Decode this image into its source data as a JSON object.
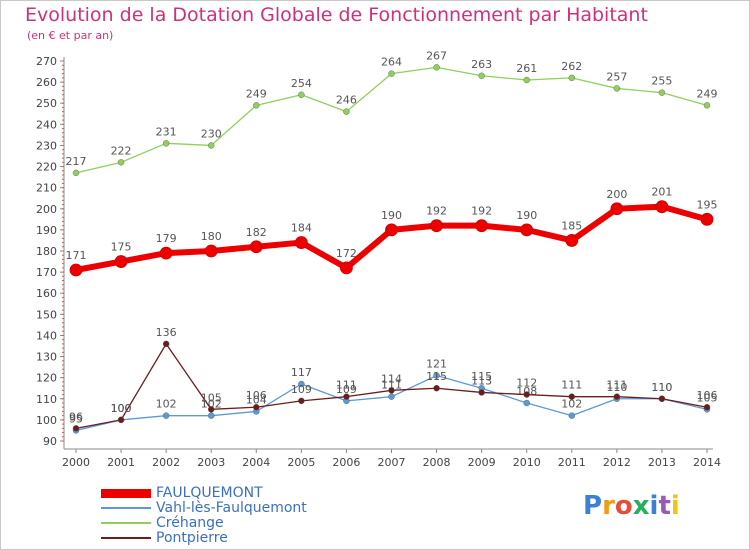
{
  "header": {
    "title": "Evolution de la Dotation Globale de Fonctionnement par Habitant",
    "subtitle": "(en € et par an)"
  },
  "logo": {
    "text": "Proxiti",
    "colors": [
      "#3a7fd8",
      "#f39c12",
      "#e74c3c",
      "#27ae60",
      "#3a7fd8",
      "#9b59b6",
      "#f1c40f"
    ]
  },
  "chart_data": {
    "type": "line",
    "title": "Evolution de la Dotation Globale de Fonctionnement par Habitant",
    "subtitle": "(en € et par an)",
    "xlabel": "",
    "ylabel": "",
    "x": [
      "2000",
      "2001",
      "2002",
      "2003",
      "2004",
      "2005",
      "2006",
      "2007",
      "2008",
      "2009",
      "2010",
      "2011",
      "2012",
      "2013",
      "2014"
    ],
    "ylim": [
      90,
      270
    ],
    "yticks": [
      90,
      100,
      110,
      120,
      130,
      140,
      150,
      160,
      170,
      180,
      190,
      200,
      210,
      220,
      230,
      240,
      250,
      260,
      270
    ],
    "grid": false,
    "legend_position": "bottom-left",
    "series": [
      {
        "name": "FAULQUEMONT",
        "color": "#ee0000",
        "values": [
          171,
          175,
          179,
          180,
          182,
          184,
          172,
          190,
          192,
          192,
          190,
          185,
          200,
          201,
          195
        ]
      },
      {
        "name": "Vahl-lès-Faulquemont",
        "color": "#5a9bd5",
        "values": [
          95,
          100,
          102,
          102,
          104,
          117,
          109,
          111,
          121,
          115,
          108,
          102,
          110,
          110,
          105
        ]
      },
      {
        "name": "Créhange",
        "color": "#8fd05a",
        "values": [
          217,
          222,
          231,
          230,
          249,
          254,
          246,
          264,
          267,
          263,
          261,
          262,
          257,
          255,
          249
        ]
      },
      {
        "name": "Pontpierre",
        "color": "#6b1d1d",
        "values": [
          96,
          100,
          136,
          105,
          106,
          109,
          111,
          114,
          115,
          113,
          112,
          111,
          111,
          110,
          106
        ]
      }
    ]
  }
}
